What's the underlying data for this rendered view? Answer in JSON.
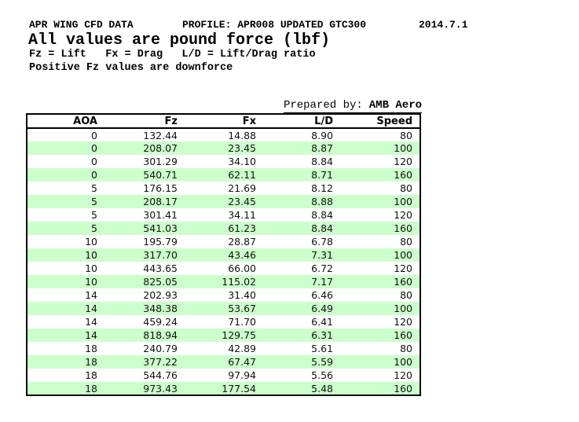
{
  "header": {
    "title": "APR WING CFD DATA",
    "profile": "PROFILE: APR008 UPDATED GTC300",
    "date": "2014.7.1",
    "subtitle": "All values are pound force (lbf)",
    "legend": "Fz = Lift   Fx = Drag   L/D = Lift/Drag ratio",
    "note": "Positive Fz values are downforce",
    "prepared_by_label": "Prepared by:",
    "prepared_by_value": "AMB Aero"
  },
  "table": {
    "columns": [
      "AOA",
      "Fz",
      "Fx",
      "L/D",
      "Speed"
    ],
    "column_keys": [
      "aoa",
      "fz",
      "fx",
      "ld",
      "speed"
    ],
    "rows": [
      [
        "0",
        "132.44",
        "14.88",
        "8.90",
        "80"
      ],
      [
        "0",
        "208.07",
        "23.45",
        "8.87",
        "100"
      ],
      [
        "0",
        "301.29",
        "34.10",
        "8.84",
        "120"
      ],
      [
        "0",
        "540.71",
        "62.11",
        "8.71",
        "160"
      ],
      [
        "5",
        "176.15",
        "21.69",
        "8.12",
        "80"
      ],
      [
        "5",
        "208.17",
        "23.45",
        "8.88",
        "100"
      ],
      [
        "5",
        "301.41",
        "34.11",
        "8.84",
        "120"
      ],
      [
        "5",
        "541.03",
        "61.23",
        "8.84",
        "160"
      ],
      [
        "10",
        "195.79",
        "28.87",
        "6.78",
        "80"
      ],
      [
        "10",
        "317.70",
        "43.46",
        "7.31",
        "100"
      ],
      [
        "10",
        "443.65",
        "66.00",
        "6.72",
        "120"
      ],
      [
        "10",
        "825.05",
        "115.02",
        "7.17",
        "160"
      ],
      [
        "14",
        "202.93",
        "31.40",
        "6.46",
        "80"
      ],
      [
        "14",
        "348.38",
        "53.67",
        "6.49",
        "100"
      ],
      [
        "14",
        "459.24",
        "71.70",
        "6.41",
        "120"
      ],
      [
        "14",
        "818.94",
        "129.75",
        "6.31",
        "160"
      ],
      [
        "18",
        "240.79",
        "42.89",
        "5.61",
        "80"
      ],
      [
        "18",
        "377.22",
        "67.47",
        "5.59",
        "100"
      ],
      [
        "18",
        "544.76",
        "97.94",
        "5.56",
        "120"
      ],
      [
        "18",
        "973.43",
        "177.54",
        "5.48",
        "160"
      ]
    ]
  },
  "colors": {
    "row_green": "#ccffcc",
    "row_white": "#ffffff",
    "border": "#000000",
    "text": "#000000"
  }
}
